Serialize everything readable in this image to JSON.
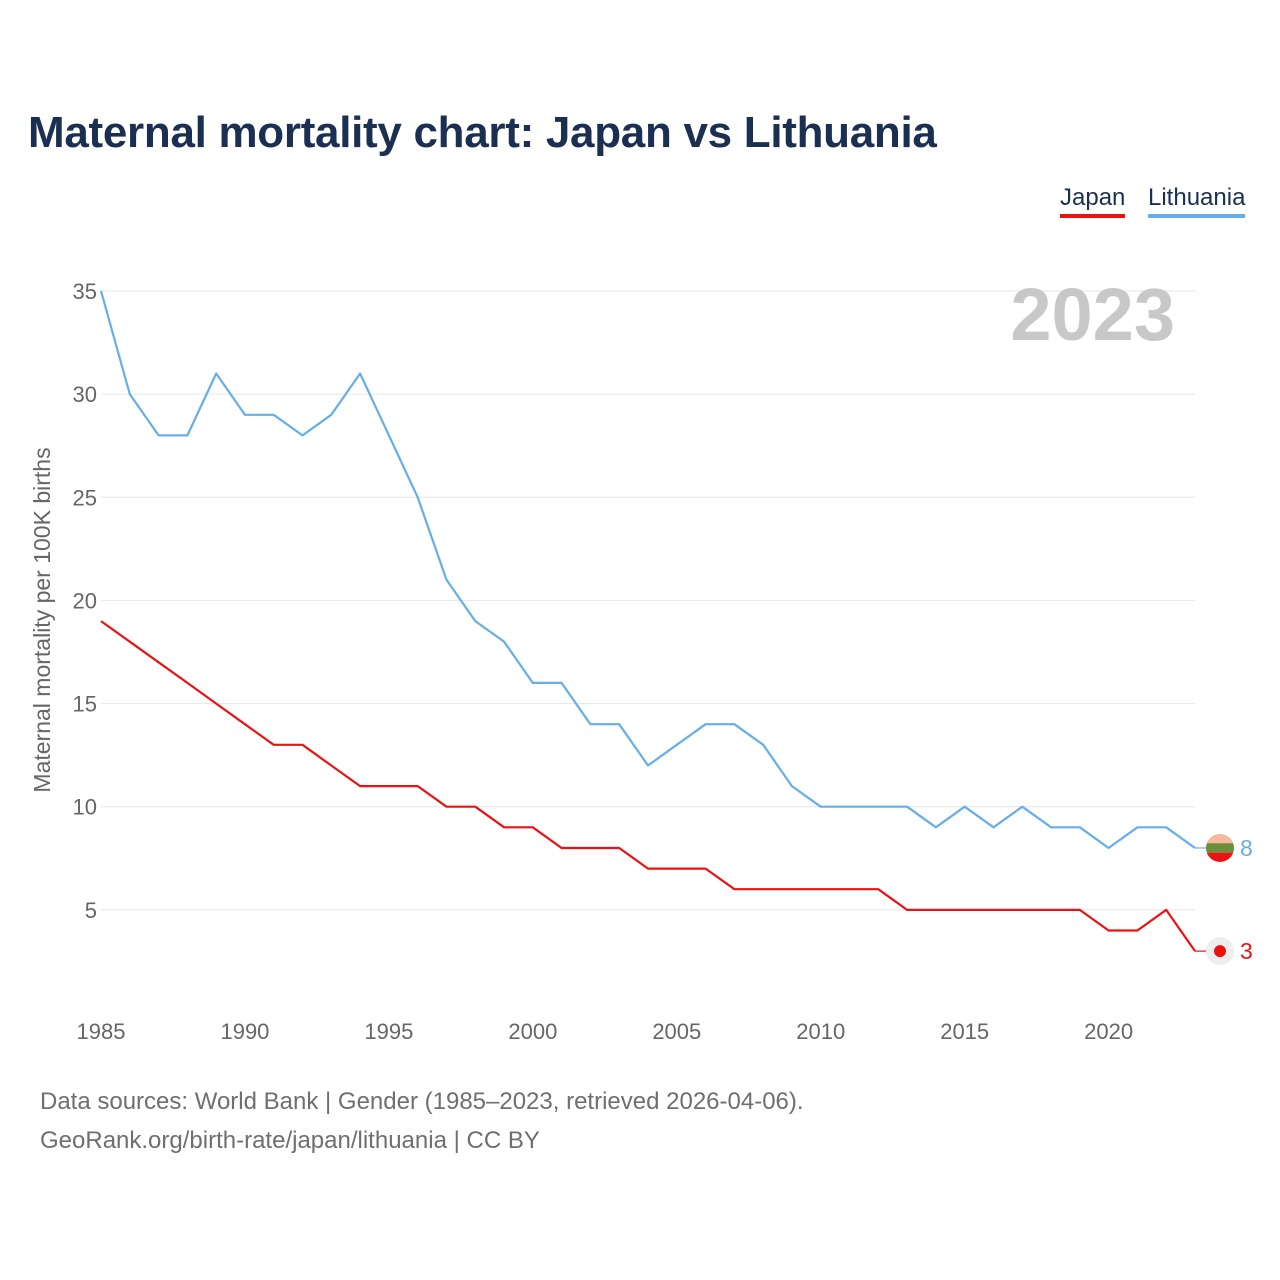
{
  "title": "Maternal mortality chart: Japan vs Lithuania",
  "legend": {
    "japan": "Japan",
    "lithuania": "Lithuania"
  },
  "year_display": "2023",
  "footer": {
    "line1": "Data sources: World Bank | Gender (1985–2023, retrieved 2026-04-06).",
    "line2": "GeoRank.org/birth-rate/japan/lithuania | CC BY"
  },
  "colors": {
    "japan": "#ee1111",
    "lithuania": "#66aee8",
    "grid": "#e6e6e6",
    "tick": "#666666",
    "year": "#c8c8c8"
  },
  "chart_data": {
    "type": "line",
    "title": "Maternal mortality chart: Japan vs Lithuania",
    "xlabel": "",
    "ylabel": "Maternal mortality per 100K births",
    "xlim": [
      1985,
      2023
    ],
    "ylim": [
      0,
      35
    ],
    "x_ticks": [
      1985,
      1990,
      1995,
      2000,
      2005,
      2010,
      2015,
      2020
    ],
    "y_ticks": [
      5,
      10,
      15,
      20,
      25,
      30,
      35
    ],
    "x": [
      1985,
      1986,
      1987,
      1988,
      1989,
      1990,
      1991,
      1992,
      1993,
      1994,
      1995,
      1996,
      1997,
      1998,
      1999,
      2000,
      2001,
      2002,
      2003,
      2004,
      2005,
      2006,
      2007,
      2008,
      2009,
      2010,
      2011,
      2012,
      2013,
      2014,
      2015,
      2016,
      2017,
      2018,
      2019,
      2020,
      2021,
      2022,
      2023
    ],
    "series": [
      {
        "name": "Japan",
        "end_label": "3",
        "values": [
          19,
          18,
          17,
          16,
          15,
          14,
          13,
          13,
          12,
          11,
          11,
          11,
          10,
          10,
          9,
          9,
          8,
          8,
          8,
          7,
          7,
          7,
          6,
          6,
          6,
          6,
          6,
          6,
          5,
          5,
          5,
          5,
          5,
          5,
          5,
          4,
          4,
          5,
          3
        ]
      },
      {
        "name": "Lithuania",
        "end_label": "8",
        "values": [
          35,
          30,
          28,
          28,
          31,
          29,
          29,
          28,
          29,
          31,
          28,
          25,
          21,
          19,
          18,
          16,
          16,
          14,
          14,
          12,
          13,
          14,
          14,
          13,
          11,
          10,
          10,
          10,
          10,
          9,
          10,
          9,
          10,
          9,
          9,
          8,
          9,
          9,
          8
        ]
      }
    ]
  }
}
